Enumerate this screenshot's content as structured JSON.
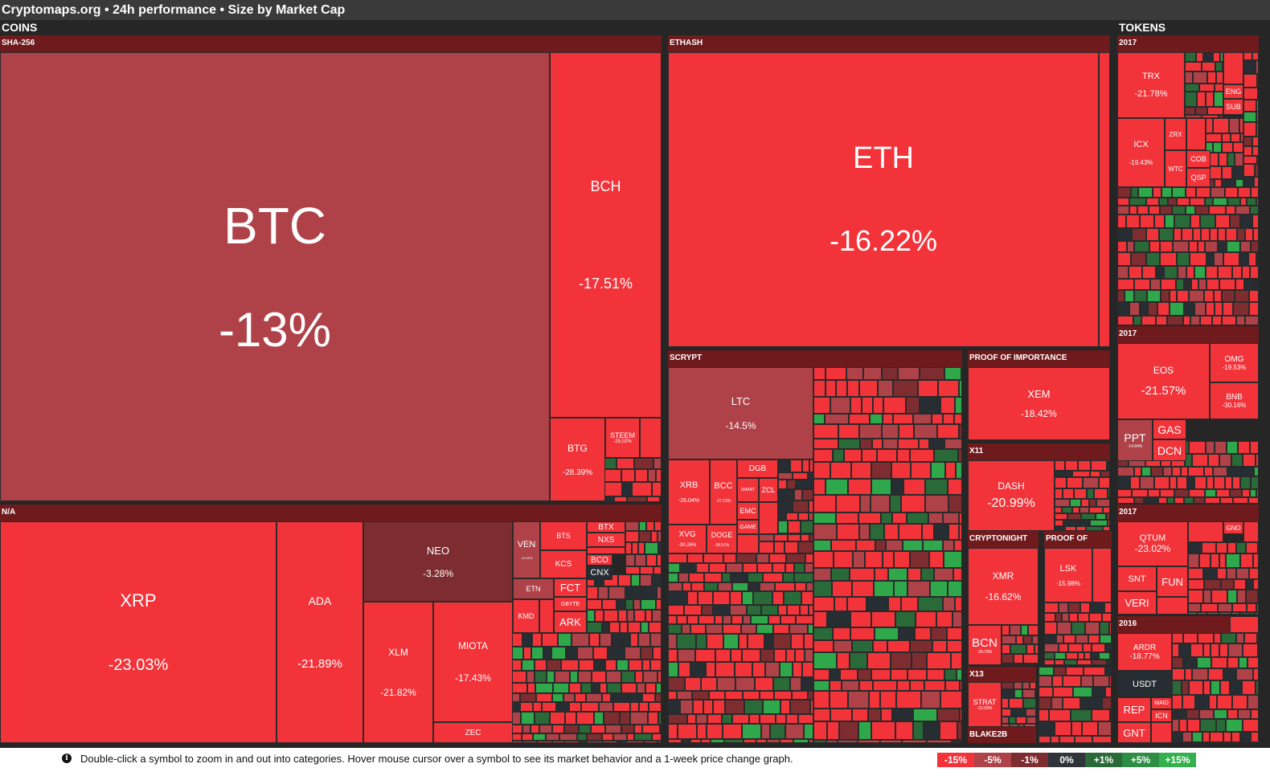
{
  "title": "Cryptomaps.org • 24h performance • Size by Market Cap",
  "colors": {
    "red": "#f2333a",
    "red_dark": "#ae4248",
    "red_darker": "#7d2c30",
    "neutral": "#262d33",
    "green": "#2ea84a",
    "green_dark": "#2a6a38",
    "header_bg": "#3a3a3a",
    "group_bg": "#6f1a1c"
  },
  "sections": {
    "coins": "COINS",
    "tokens": "TOKENS"
  },
  "groups": {
    "sha256": "SHA-256",
    "ethash": "ETHASH",
    "na": "N/A",
    "scrypt": "SCRYPT",
    "poi": "PROOF OF IMPORTANCE",
    "x11": "X11",
    "cryptonight": "CRYPTONIGHT",
    "pos": "PROOF OF STAKE",
    "x13": "X13",
    "blake2b": "BLAKE2B",
    "t2017a": "2017",
    "t2017b": "2017",
    "t2017c": "2017",
    "t2016": "2016"
  },
  "tiles": {
    "btc": {
      "symbol": "BTC",
      "change": "-13%"
    },
    "bch": {
      "symbol": "BCH",
      "change": "-17.51%"
    },
    "btg": {
      "symbol": "BTG",
      "change": "-28.39%"
    },
    "steem": {
      "symbol": "STEEM",
      "change": "-25.02%"
    },
    "eth": {
      "symbol": "ETH",
      "change": "-16.22%"
    },
    "ltc": {
      "symbol": "LTC",
      "change": "-14.5%"
    },
    "xrb": {
      "symbol": "XRB",
      "change": "-26.04%"
    },
    "bcc": {
      "symbol": "BCC",
      "change": "-27.19%"
    },
    "dgb": {
      "symbol": "DGB"
    },
    "smart": {
      "symbol": "SMART"
    },
    "zcl": {
      "symbol": "ZCL"
    },
    "emc": {
      "symbol": "EMC"
    },
    "game": {
      "symbol": "GAME"
    },
    "xvg": {
      "symbol": "XVG",
      "change": "-30.26%"
    },
    "doge": {
      "symbol": "DOGE",
      "change": "-28.51%"
    },
    "xem": {
      "symbol": "XEM",
      "change": "-18.42%"
    },
    "dash": {
      "symbol": "DASH",
      "change": "-20.99%"
    },
    "xmr": {
      "symbol": "XMR",
      "change": "-16.62%"
    },
    "bcn": {
      "symbol": "BCN",
      "change": "-29.78%"
    },
    "lsk": {
      "symbol": "LSK",
      "change": "-15.98%"
    },
    "strat": {
      "symbol": "STRAT",
      "change": "-22.09%"
    },
    "xrp": {
      "symbol": "XRP",
      "change": "-23.03%"
    },
    "ada": {
      "symbol": "ADA",
      "change": "-21.89%"
    },
    "neo": {
      "symbol": "NEO",
      "change": "-3.28%"
    },
    "xlm": {
      "symbol": "XLM",
      "change": "-21.82%"
    },
    "miota": {
      "symbol": "MIOTA",
      "change": "-17.43%"
    },
    "zec": {
      "symbol": "ZEC"
    },
    "ven": {
      "symbol": "VEN",
      "change": "-13.02%"
    },
    "bts": {
      "symbol": "BTS"
    },
    "btx": {
      "symbol": "BTX"
    },
    "nxs": {
      "symbol": "NXS"
    },
    "kcs": {
      "symbol": "KCS"
    },
    "bco": {
      "symbol": "BCO"
    },
    "cnx": {
      "symbol": "CNX"
    },
    "etn": {
      "symbol": "ETN"
    },
    "fct": {
      "symbol": "FCT"
    },
    "gbyte": {
      "symbol": "GBYTE"
    },
    "kmd": {
      "symbol": "KMD"
    },
    "ark": {
      "symbol": "ARK"
    },
    "trx": {
      "symbol": "TRX",
      "change": "-21.78%"
    },
    "eng": {
      "symbol": "ENG"
    },
    "sub": {
      "symbol": "SUB"
    },
    "icx": {
      "symbol": "ICX",
      "change": "-19.43%"
    },
    "zrx": {
      "symbol": "ZRX"
    },
    "wtc": {
      "symbol": "WTC"
    },
    "cob": {
      "symbol": "COB"
    },
    "qsp": {
      "symbol": "QSP"
    },
    "eos": {
      "symbol": "EOS",
      "change": "-21.57%"
    },
    "omg": {
      "symbol": "OMG",
      "change": "-19.53%"
    },
    "bnb": {
      "symbol": "BNB",
      "change": "-30.16%"
    },
    "ppt": {
      "symbol": "PPT",
      "change": "-14.84%"
    },
    "gas": {
      "symbol": "GAS"
    },
    "dcn": {
      "symbol": "DCN"
    },
    "qtum": {
      "symbol": "QTUM",
      "change": "-23.02%"
    },
    "gno": {
      "symbol": "GNO"
    },
    "snt": {
      "symbol": "SNT"
    },
    "fun": {
      "symbol": "FUN"
    },
    "veri": {
      "symbol": "VERI"
    },
    "ardr": {
      "symbol": "ARDR",
      "change": "-18.77%"
    },
    "usdt": {
      "symbol": "USDT"
    },
    "rep": {
      "symbol": "REP"
    },
    "maid": {
      "symbol": "MAID"
    },
    "icn": {
      "symbol": "ICN"
    },
    "gnt": {
      "symbol": "GNT"
    }
  },
  "footer": {
    "info_icon": "info-icon",
    "info_text": "Double-click a symbol to zoom in and out into categories. Hover mouse cursor over a symbol to see its market behavior and a 1-week price change graph."
  },
  "legend": [
    {
      "label": "-15%",
      "color": "#f2333a"
    },
    {
      "label": "-5%",
      "color": "#ae4248"
    },
    {
      "label": "-1%",
      "color": "#7d2c30"
    },
    {
      "label": "0%",
      "color": "#2f343a"
    },
    {
      "label": "+1%",
      "color": "#2a6a38"
    },
    {
      "label": "+5%",
      "color": "#2f8c45"
    },
    {
      "label": "+15%",
      "color": "#34b04f"
    }
  ]
}
